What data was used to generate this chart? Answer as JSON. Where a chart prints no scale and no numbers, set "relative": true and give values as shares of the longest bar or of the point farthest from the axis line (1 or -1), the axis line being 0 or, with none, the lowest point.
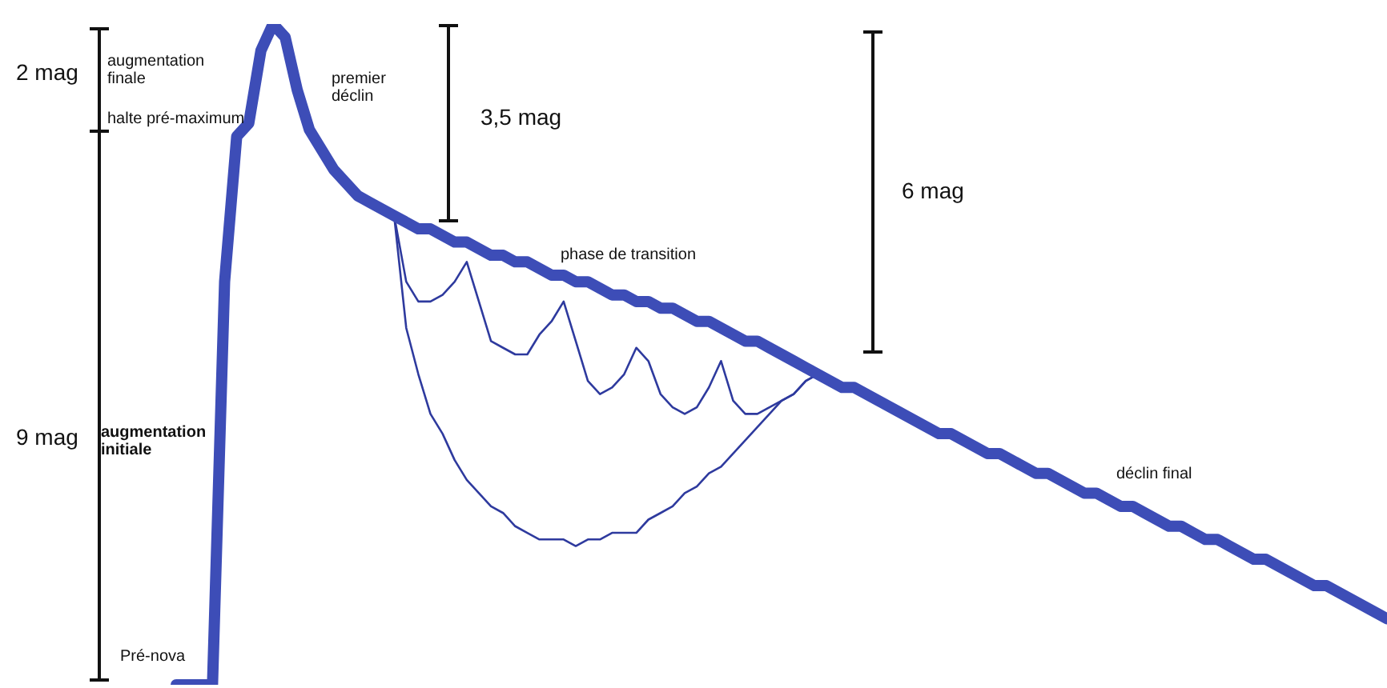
{
  "chart_data": {
    "type": "line",
    "relative": true,
    "marker": "none",
    "categories": [
      null,
      null,
      null,
      null,
      null,
      null,
      null,
      null,
      null,
      null,
      null,
      null,
      null,
      null,
      null,
      null,
      null,
      null,
      null,
      null,
      null,
      null,
      null,
      null,
      null,
      null,
      null,
      null,
      null,
      null,
      null,
      null,
      null,
      null,
      null,
      null,
      null,
      null,
      null,
      null,
      null,
      null,
      null,
      null,
      null,
      null,
      null,
      null,
      null,
      null,
      null,
      null,
      null,
      null,
      null,
      null,
      null,
      null,
      null,
      null,
      null,
      null,
      null,
      null,
      null,
      null,
      null,
      null,
      null,
      null,
      null,
      null,
      null,
      null,
      null,
      null,
      null,
      null,
      null,
      null,
      null,
      null,
      null,
      null,
      null,
      null,
      null,
      null,
      null,
      null,
      null,
      null,
      null,
      null,
      null,
      null,
      null,
      null,
      null,
      null,
      null
    ],
    "series": [
      {
        "color": "#3d4db7",
        "values": [
          0,
          0,
          0,
          0,
          0.61,
          0.83,
          0.85,
          0.96,
          1,
          0.98,
          0.9,
          0.84,
          0.81,
          0.78,
          0.76,
          0.74,
          0.73,
          0.72,
          0.71,
          0.7,
          0.69,
          0.69,
          0.68,
          0.67,
          0.67,
          0.66,
          0.65,
          0.65,
          0.64,
          0.64,
          0.63,
          0.62,
          0.62,
          0.61,
          0.61,
          0.6,
          0.59,
          0.59,
          0.58,
          0.58,
          0.57,
          0.57,
          0.56,
          0.55,
          0.55,
          0.54,
          0.53,
          0.52,
          0.52,
          0.51,
          0.5,
          0.49,
          0.48,
          0.47,
          0.46,
          0.45,
          0.45,
          0.44,
          0.43,
          0.42,
          0.41,
          0.4,
          0.39,
          0.38,
          0.38,
          0.37,
          0.36,
          0.35,
          0.35,
          0.34,
          0.33,
          0.32,
          0.32,
          0.31,
          0.3,
          0.29,
          0.29,
          0.28,
          0.27,
          0.27,
          0.26,
          0.25,
          0.24,
          0.24,
          0.23,
          0.22,
          0.22,
          0.21,
          0.2,
          0.19,
          0.19,
          0.18,
          0.17,
          0.16,
          0.15,
          0.15,
          0.14,
          0.13,
          0.12,
          0.11,
          0.1
        ]
      },
      {
        "color": "#2e3a9e",
        "values": [
          null,
          null,
          null,
          null,
          null,
          null,
          null,
          null,
          null,
          null,
          null,
          null,
          null,
          null,
          null,
          null,
          null,
          null,
          0.71,
          0.54,
          0.47,
          0.41,
          0.38,
          0.34,
          0.31,
          0.29,
          0.27,
          0.26,
          0.24,
          0.23,
          0.22,
          0.22,
          0.22,
          0.21,
          0.22,
          0.22,
          0.23,
          0.23,
          0.23,
          0.25,
          0.26,
          0.27,
          0.29,
          0.3,
          0.32,
          0.33,
          0.35,
          0.37,
          0.39,
          0.41,
          0.43,
          0.44,
          0.46,
          0.47,
          null,
          null,
          null,
          null,
          null,
          null,
          null,
          null,
          null,
          null,
          null,
          null,
          null,
          null,
          null,
          null,
          null,
          null,
          null,
          null,
          null,
          null,
          null,
          null,
          null,
          null,
          null,
          null,
          null,
          null,
          null,
          null,
          null,
          null,
          null,
          null,
          null,
          null,
          null,
          null,
          null,
          null,
          null,
          null,
          null,
          null,
          null
        ]
      },
      {
        "color": "#2e3a9e",
        "values": [
          null,
          null,
          null,
          null,
          null,
          null,
          null,
          null,
          null,
          null,
          null,
          null,
          null,
          null,
          null,
          null,
          null,
          null,
          0.71,
          0.61,
          0.58,
          0.58,
          0.59,
          0.61,
          0.64,
          0.58,
          0.52,
          0.51,
          0.5,
          0.5,
          0.53,
          0.55,
          0.58,
          0.52,
          0.46,
          0.44,
          0.45,
          0.47,
          0.51,
          0.49,
          0.44,
          0.42,
          0.41,
          0.42,
          0.45,
          0.49,
          0.43,
          0.41,
          0.41,
          0.42,
          0.43,
          0.44,
          0.46,
          0.47,
          null,
          null,
          null,
          null,
          null,
          null,
          null,
          null,
          null,
          null,
          null,
          null,
          null,
          null,
          null,
          null,
          null,
          null,
          null,
          null,
          null,
          null,
          null,
          null,
          null,
          null,
          null,
          null,
          null,
          null,
          null,
          null,
          null,
          null,
          null,
          null,
          null,
          null,
          null,
          null,
          null,
          null,
          null,
          null,
          null,
          null,
          null
        ]
      }
    ],
    "annotations": [
      "2 mag",
      "augmentation finale",
      "halte pré-maximum",
      "premier déclin",
      "3,5 mag",
      "6 mag",
      "phase de transition",
      "9 mag",
      "augmentation initiale",
      "déclin final",
      "Pré-nova"
    ]
  }
}
